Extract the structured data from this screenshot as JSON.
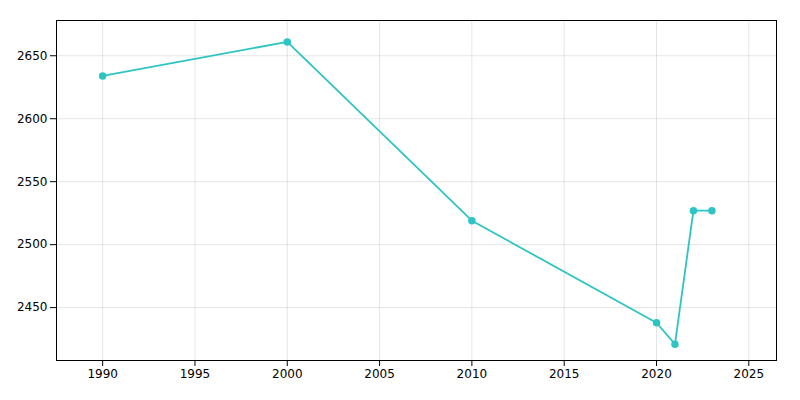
{
  "chart_data": {
    "type": "line",
    "x": [
      1990,
      2000,
      2010,
      2020,
      2021,
      2022,
      2023
    ],
    "values": [
      2634,
      2661,
      2519,
      2438,
      2421,
      2527,
      2527
    ],
    "color": "#2EC4C4",
    "marker": "circle",
    "xlim": [
      1987.5,
      2026.5
    ],
    "ylim": [
      2408,
      2678
    ],
    "xticks": [
      1990,
      1995,
      2000,
      2005,
      2010,
      2015,
      2020,
      2025
    ],
    "yticks": [
      2450,
      2500,
      2550,
      2600,
      2650
    ],
    "grid": true
  }
}
